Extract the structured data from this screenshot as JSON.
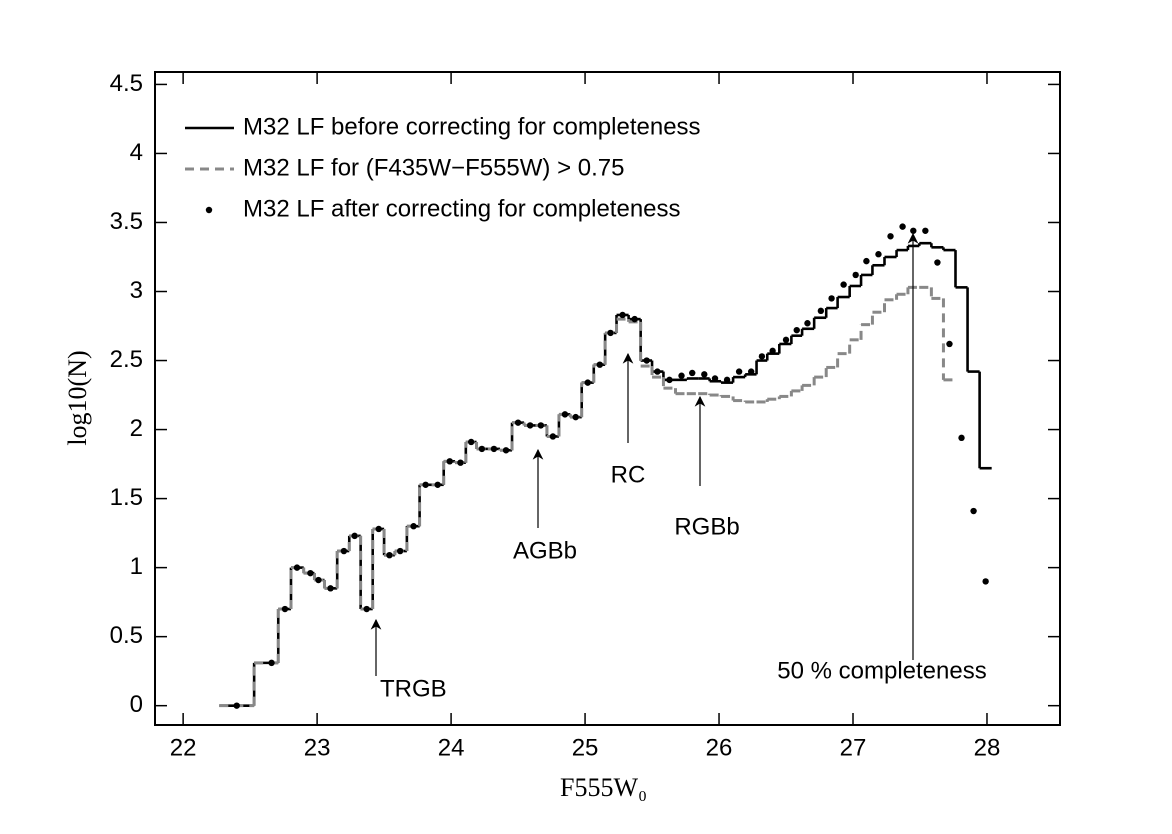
{
  "chart_data": {
    "type": "step",
    "xlabel": "F555W₀",
    "ylabel": "log10(N)",
    "xlim": [
      21.79,
      28.545
    ],
    "ylim": [
      -0.14,
      4.59
    ],
    "xticks": [
      22,
      23,
      24,
      25,
      26,
      27,
      28
    ],
    "yticks": [
      0,
      0.5,
      1,
      1.5,
      2,
      2.5,
      3,
      3.5,
      4,
      4.5
    ],
    "legend": "upper left",
    "x": [
      22.4,
      22.66,
      22.76,
      22.85,
      22.95,
      23.01,
      23.1,
      23.2,
      23.28,
      23.37,
      23.46,
      23.54,
      23.62,
      23.72,
      23.81,
      23.9,
      23.99,
      24.07,
      24.15,
      24.23,
      24.32,
      24.41,
      24.5,
      24.59,
      24.67,
      24.76,
      24.85,
      24.93,
      25.02,
      25.11,
      25.19,
      25.28,
      25.37,
      25.46,
      25.54,
      25.63,
      25.72,
      25.8,
      25.89,
      25.97,
      26.06,
      26.15,
      26.24,
      26.32,
      26.4,
      26.5,
      26.58,
      26.66,
      26.76,
      26.84,
      26.93,
      27.02,
      27.1,
      27.19,
      27.28,
      27.37,
      27.45,
      27.54,
      27.63,
      27.72,
      27.81,
      27.9,
      27.99
    ],
    "series": [
      {
        "name": "M32 LF before correcting for completeness",
        "style": "solid",
        "color": "#000000",
        "values": [
          0.0,
          0.31,
          0.7,
          1.0,
          0.96,
          0.91,
          0.85,
          1.12,
          1.23,
          0.7,
          1.28,
          1.09,
          1.12,
          1.3,
          1.6,
          1.6,
          1.77,
          1.76,
          1.91,
          1.86,
          1.86,
          1.85,
          2.05,
          2.03,
          2.03,
          1.95,
          2.11,
          2.09,
          2.34,
          2.47,
          2.7,
          2.83,
          2.8,
          2.5,
          2.42,
          2.36,
          2.36,
          2.37,
          2.37,
          2.35,
          2.34,
          2.38,
          2.4,
          2.5,
          2.55,
          2.62,
          2.68,
          2.73,
          2.81,
          2.88,
          2.96,
          3.04,
          3.12,
          3.19,
          3.25,
          3.3,
          3.33,
          3.35,
          3.32,
          3.3,
          3.03,
          2.42,
          1.72
        ]
      },
      {
        "name": "M32 LF for (F435W−F555W) > 0.75",
        "style": "dashed",
        "color": "#888888",
        "values": [
          0.0,
          0.31,
          0.7,
          1.0,
          0.96,
          0.91,
          0.85,
          1.12,
          1.23,
          0.7,
          1.28,
          1.09,
          1.12,
          1.3,
          1.6,
          1.6,
          1.77,
          1.76,
          1.91,
          1.86,
          1.86,
          1.85,
          2.05,
          2.03,
          2.03,
          1.95,
          2.11,
          2.09,
          2.34,
          2.47,
          2.7,
          2.8,
          2.78,
          2.46,
          2.38,
          2.3,
          2.26,
          2.26,
          2.26,
          2.25,
          2.24,
          2.21,
          2.2,
          2.2,
          2.22,
          2.24,
          2.28,
          2.32,
          2.38,
          2.45,
          2.55,
          2.65,
          2.76,
          2.85,
          2.94,
          2.98,
          3.03,
          3.03,
          2.95,
          2.36,
          null,
          null,
          null
        ]
      },
      {
        "name": "M32 LF after correcting for completeness",
        "style": "dots",
        "color": "#000000",
        "values": [
          0.0,
          0.31,
          0.7,
          1.0,
          0.96,
          0.91,
          0.85,
          1.12,
          1.23,
          0.7,
          1.28,
          1.09,
          1.12,
          1.3,
          1.6,
          1.6,
          1.77,
          1.76,
          1.91,
          1.86,
          1.86,
          1.85,
          2.05,
          2.03,
          2.03,
          1.95,
          2.11,
          2.09,
          2.34,
          2.47,
          2.7,
          2.83,
          2.8,
          2.5,
          2.42,
          2.36,
          2.39,
          2.41,
          2.4,
          2.37,
          2.36,
          2.42,
          2.42,
          2.53,
          2.57,
          2.65,
          2.72,
          2.77,
          2.86,
          2.95,
          3.05,
          3.12,
          3.22,
          3.27,
          3.4,
          3.47,
          3.44,
          3.44,
          3.21,
          2.62,
          1.94,
          1.41,
          0.9
        ]
      }
    ],
    "annotations": [
      {
        "text": "TRGB"
      },
      {
        "text": "AGBb"
      },
      {
        "text": "RC"
      },
      {
        "text": "RGBb"
      },
      {
        "text": "50 % completeness"
      }
    ]
  }
}
